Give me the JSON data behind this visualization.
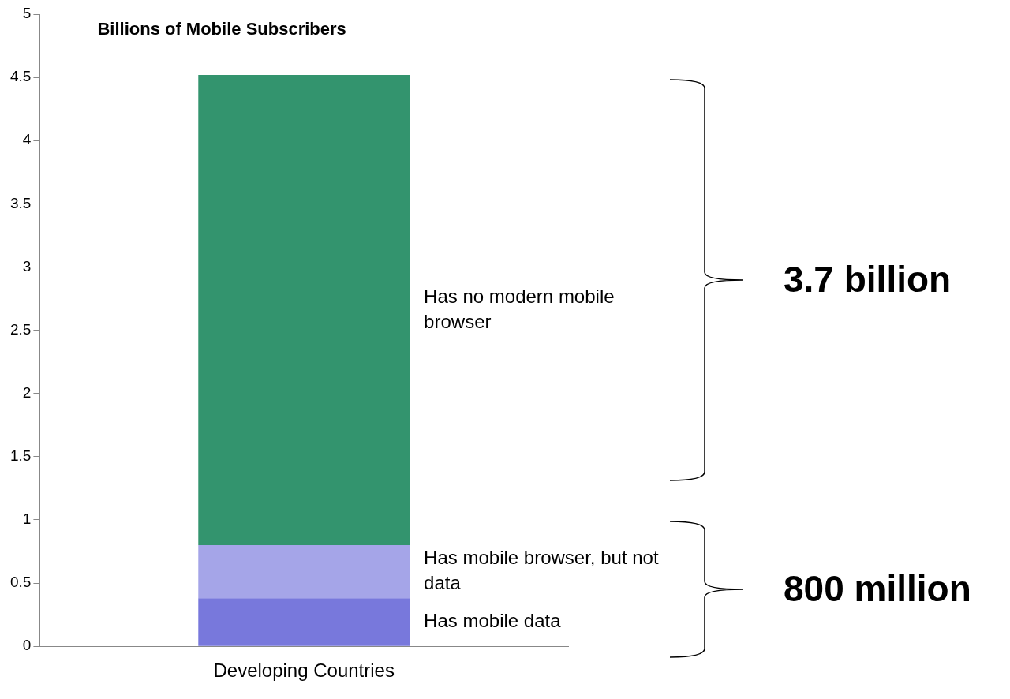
{
  "chart_data": {
    "type": "bar",
    "title": "Billions of Mobile Subscribers",
    "stacked": true,
    "categories": [
      "Developing Countries"
    ],
    "series": [
      {
        "name": "Has mobile data",
        "color": "#7878dc",
        "values": [
          0.38
        ]
      },
      {
        "name": "Has mobile browser, but not data",
        "color": "#a5a5e8",
        "values": [
          0.42
        ]
      },
      {
        "name": "Has no modern mobile browser",
        "color": "#33946e",
        "values": [
          3.72
        ]
      }
    ],
    "ylim": [
      0,
      5
    ],
    "yticks": [
      0,
      0.5,
      1,
      1.5,
      2,
      2.5,
      3,
      3.5,
      4,
      4.5,
      5
    ],
    "grid": false,
    "legend": false,
    "annotations": [
      "3.7 billion",
      "800 million"
    ]
  }
}
